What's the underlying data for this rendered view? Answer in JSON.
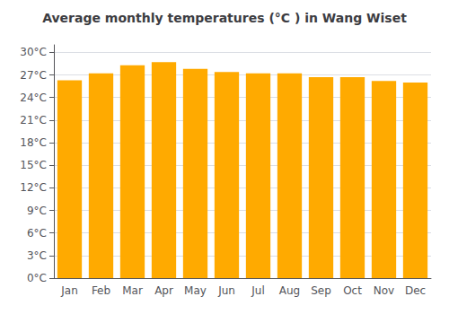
{
  "chart_data": {
    "type": "bar",
    "title": "Average monthly temperatures (°C ) in Wang Wiset",
    "categories": [
      "Jan",
      "Feb",
      "Mar",
      "Apr",
      "May",
      "Jun",
      "Jul",
      "Aug",
      "Sep",
      "Oct",
      "Nov",
      "Dec"
    ],
    "values": [
      26.3,
      27.2,
      28.3,
      28.7,
      27.8,
      27.4,
      27.2,
      27.2,
      26.7,
      26.7,
      26.2,
      26.0
    ],
    "color": "#FFAA00",
    "ylim": [
      0,
      31
    ],
    "yticks": [
      {
        "value": 0,
        "label": "0°C"
      },
      {
        "value": 3,
        "label": "3°C"
      },
      {
        "value": 6,
        "label": "6°C"
      },
      {
        "value": 9,
        "label": "9°C"
      },
      {
        "value": 12,
        "label": "12°C"
      },
      {
        "value": 15,
        "label": "15°C"
      },
      {
        "value": 18,
        "label": "18°C"
      },
      {
        "value": 21,
        "label": "21°C"
      },
      {
        "value": 24,
        "label": "24°C"
      },
      {
        "value": 27,
        "label": "27°C"
      },
      {
        "value": 30,
        "label": "30°C"
      }
    ],
    "grid": true
  }
}
